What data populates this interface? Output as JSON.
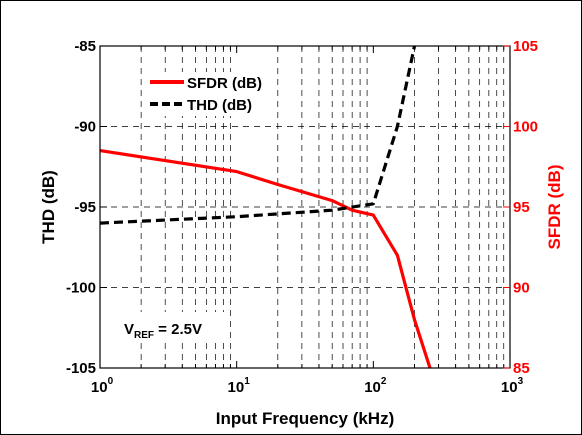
{
  "chart_data": {
    "type": "line",
    "xlabel": "Input Frequency (kHz)",
    "x_scale": "log",
    "xlim": [
      1,
      1000
    ],
    "x_ticks": [
      {
        "value": 1,
        "base": "10",
        "exp": "0"
      },
      {
        "value": 10,
        "base": "10",
        "exp": "1"
      },
      {
        "value": 100,
        "base": "10",
        "exp": "2"
      },
      {
        "value": 1000,
        "base": "10",
        "exp": "3"
      }
    ],
    "y_left": {
      "label": "THD (dB)",
      "lim": [
        -105,
        -85
      ],
      "ticks": [
        "-85",
        "-90",
        "-95",
        "-100",
        "-105"
      ],
      "tick_values": [
        -85,
        -90,
        -95,
        -100,
        -105
      ],
      "color": "#000000"
    },
    "y_right": {
      "label": "SFDR (dB)",
      "lim": [
        85,
        105
      ],
      "ticks": [
        "105",
        "100",
        "95",
        "90",
        "85"
      ],
      "tick_values": [
        105,
        100,
        95,
        90,
        85
      ],
      "color": "#ff0000"
    },
    "grid": true,
    "legend_position": "top-left",
    "annotation": {
      "base": "V",
      "subscript": "REF",
      "rest": " = 2.5V"
    },
    "series": [
      {
        "name": "SFDR (dB)",
        "axis": "right",
        "color": "#ff0000",
        "style": "solid",
        "x": [
          1,
          10,
          20,
          50,
          70,
          100,
          150,
          200,
          260
        ],
        "y": [
          98.5,
          97.2,
          96.4,
          95.4,
          94.8,
          94.5,
          92.0,
          88.0,
          85.0
        ]
      },
      {
        "name": "THD (dB)",
        "axis": "left",
        "color": "#000000",
        "style": "dashed",
        "x": [
          1,
          10,
          50,
          100,
          150,
          200
        ],
        "y": [
          -96.0,
          -95.6,
          -95.2,
          -94.8,
          -90.0,
          -85.0
        ]
      }
    ]
  }
}
